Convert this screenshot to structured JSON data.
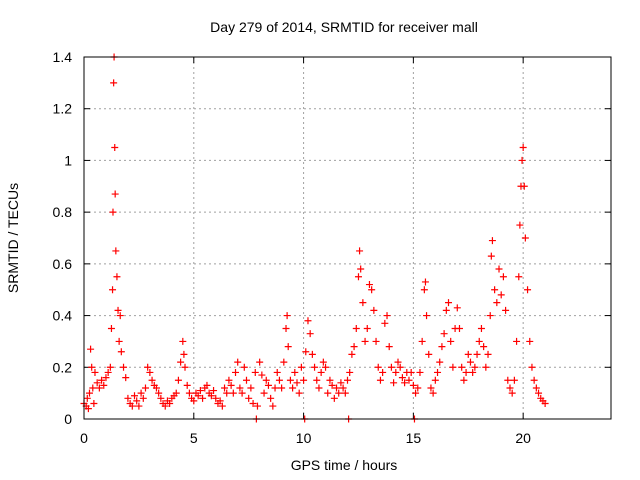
{
  "chart_data": {
    "type": "scatter",
    "title": "Day 279 of 2014, SRMTID for receiver mall",
    "xlabel": "GPS time / hours",
    "ylabel": "SRMTID / TECUs",
    "xlim": [
      0,
      24
    ],
    "ylim": [
      0,
      1.4
    ],
    "xticks": [
      0,
      5,
      10,
      15,
      20
    ],
    "yticks": [
      0,
      0.2,
      0.4,
      0.6,
      0.8,
      1,
      1.2,
      1.4
    ],
    "xtick_labels": [
      "0",
      "5",
      "10",
      "15",
      "20"
    ],
    "ytick_labels": [
      "0",
      "0.2",
      "0.4",
      "0.6",
      "0.8",
      "1",
      "1.2",
      "1.4"
    ],
    "grid": true,
    "marker": "+",
    "color": "#ff0000",
    "series": [
      {
        "name": "SRMTID",
        "points": [
          [
            0.0,
            0.06
          ],
          [
            0.1,
            0.05
          ],
          [
            0.15,
            0.08
          ],
          [
            0.2,
            0.04
          ],
          [
            0.25,
            0.1
          ],
          [
            0.3,
            0.27
          ],
          [
            0.35,
            0.2
          ],
          [
            0.4,
            0.12
          ],
          [
            0.45,
            0.06
          ],
          [
            0.5,
            0.18
          ],
          [
            0.6,
            0.14
          ],
          [
            0.7,
            0.12
          ],
          [
            0.8,
            0.15
          ],
          [
            0.9,
            0.13
          ],
          [
            1.0,
            0.16
          ],
          [
            1.1,
            0.18
          ],
          [
            1.2,
            0.2
          ],
          [
            1.25,
            0.35
          ],
          [
            1.3,
            0.5
          ],
          [
            1.32,
            0.8
          ],
          [
            1.35,
            1.3
          ],
          [
            1.37,
            1.4
          ],
          [
            1.4,
            1.05
          ],
          [
            1.42,
            0.87
          ],
          [
            1.45,
            0.65
          ],
          [
            1.5,
            0.55
          ],
          [
            1.55,
            0.42
          ],
          [
            1.6,
            0.3
          ],
          [
            1.65,
            0.4
          ],
          [
            1.7,
            0.26
          ],
          [
            1.8,
            0.2
          ],
          [
            1.9,
            0.16
          ],
          [
            2.0,
            0.08
          ],
          [
            2.1,
            0.06
          ],
          [
            2.2,
            0.05
          ],
          [
            2.3,
            0.09
          ],
          [
            2.4,
            0.07
          ],
          [
            2.5,
            0.05
          ],
          [
            2.6,
            0.1
          ],
          [
            2.7,
            0.08
          ],
          [
            2.8,
            0.12
          ],
          [
            2.9,
            0.2
          ],
          [
            3.0,
            0.18
          ],
          [
            3.1,
            0.15
          ],
          [
            3.2,
            0.13
          ],
          [
            3.3,
            0.12
          ],
          [
            3.4,
            0.1
          ],
          [
            3.5,
            0.08
          ],
          [
            3.6,
            0.06
          ],
          [
            3.7,
            0.05
          ],
          [
            3.8,
            0.07
          ],
          [
            3.9,
            0.06
          ],
          [
            4.0,
            0.08
          ],
          [
            4.1,
            0.09
          ],
          [
            4.2,
            0.1
          ],
          [
            4.3,
            0.15
          ],
          [
            4.4,
            0.22
          ],
          [
            4.5,
            0.3
          ],
          [
            4.55,
            0.25
          ],
          [
            4.6,
            0.2
          ],
          [
            4.7,
            0.13
          ],
          [
            4.8,
            0.1
          ],
          [
            4.9,
            0.08
          ],
          [
            5.0,
            0.07
          ],
          [
            5.1,
            0.1
          ],
          [
            5.2,
            0.09
          ],
          [
            5.3,
            0.11
          ],
          [
            5.4,
            0.08
          ],
          [
            5.5,
            0.12
          ],
          [
            5.6,
            0.13
          ],
          [
            5.7,
            0.1
          ],
          [
            5.8,
            0.09
          ],
          [
            5.9,
            0.11
          ],
          [
            6.0,
            0.08
          ],
          [
            6.1,
            0.06
          ],
          [
            6.2,
            0.07
          ],
          [
            6.3,
            0.05
          ],
          [
            6.4,
            0.12
          ],
          [
            6.5,
            0.1
          ],
          [
            6.6,
            0.15
          ],
          [
            6.7,
            0.13
          ],
          [
            6.8,
            0.1
          ],
          [
            6.9,
            0.18
          ],
          [
            7.0,
            0.22
          ],
          [
            7.1,
            0.12
          ],
          [
            7.2,
            0.1
          ],
          [
            7.3,
            0.2
          ],
          [
            7.4,
            0.15
          ],
          [
            7.5,
            0.08
          ],
          [
            7.6,
            0.12
          ],
          [
            7.7,
            0.06
          ],
          [
            7.8,
            0.18
          ],
          [
            7.85,
            0.0
          ],
          [
            7.9,
            0.05
          ],
          [
            8.0,
            0.22
          ],
          [
            8.1,
            0.17
          ],
          [
            8.2,
            0.1
          ],
          [
            8.3,
            0.15
          ],
          [
            8.4,
            0.13
          ],
          [
            8.5,
            0.08
          ],
          [
            8.6,
            0.05
          ],
          [
            8.7,
            0.12
          ],
          [
            8.8,
            0.18
          ],
          [
            8.9,
            0.15
          ],
          [
            9.0,
            0.12
          ],
          [
            9.1,
            0.22
          ],
          [
            9.2,
            0.35
          ],
          [
            9.25,
            0.4
          ],
          [
            9.3,
            0.28
          ],
          [
            9.4,
            0.15
          ],
          [
            9.5,
            0.12
          ],
          [
            9.6,
            0.18
          ],
          [
            9.7,
            0.14
          ],
          [
            9.8,
            0.1
          ],
          [
            9.9,
            0.2
          ],
          [
            10.0,
            0.15
          ],
          [
            10.05,
            0.0
          ],
          [
            10.1,
            0.26
          ],
          [
            10.2,
            0.38
          ],
          [
            10.3,
            0.33
          ],
          [
            10.4,
            0.25
          ],
          [
            10.5,
            0.2
          ],
          [
            10.6,
            0.15
          ],
          [
            10.7,
            0.12
          ],
          [
            10.8,
            0.18
          ],
          [
            10.9,
            0.22
          ],
          [
            11.0,
            0.2
          ],
          [
            11.1,
            0.1
          ],
          [
            11.2,
            0.15
          ],
          [
            11.3,
            0.13
          ],
          [
            11.4,
            0.08
          ],
          [
            11.5,
            0.12
          ],
          [
            11.6,
            0.1
          ],
          [
            11.7,
            0.14
          ],
          [
            11.8,
            0.12
          ],
          [
            11.9,
            0.1
          ],
          [
            12.0,
            0.15
          ],
          [
            12.05,
            0.0
          ],
          [
            12.1,
            0.18
          ],
          [
            12.2,
            0.25
          ],
          [
            12.3,
            0.28
          ],
          [
            12.4,
            0.35
          ],
          [
            12.5,
            0.55
          ],
          [
            12.55,
            0.65
          ],
          [
            12.6,
            0.58
          ],
          [
            12.7,
            0.45
          ],
          [
            12.8,
            0.3
          ],
          [
            12.9,
            0.35
          ],
          [
            13.0,
            0.52
          ],
          [
            13.1,
            0.5
          ],
          [
            13.2,
            0.42
          ],
          [
            13.3,
            0.3
          ],
          [
            13.4,
            0.2
          ],
          [
            13.5,
            0.15
          ],
          [
            13.6,
            0.18
          ],
          [
            13.7,
            0.37
          ],
          [
            13.8,
            0.4
          ],
          [
            13.9,
            0.28
          ],
          [
            14.0,
            0.2
          ],
          [
            14.1,
            0.14
          ],
          [
            14.2,
            0.18
          ],
          [
            14.3,
            0.22
          ],
          [
            14.4,
            0.2
          ],
          [
            14.5,
            0.16
          ],
          [
            14.6,
            0.14
          ],
          [
            14.7,
            0.18
          ],
          [
            14.8,
            0.15
          ],
          [
            14.9,
            0.18
          ],
          [
            15.0,
            0.13
          ],
          [
            15.05,
            0.0
          ],
          [
            15.1,
            0.1
          ],
          [
            15.2,
            0.12
          ],
          [
            15.3,
            0.18
          ],
          [
            15.4,
            0.3
          ],
          [
            15.5,
            0.5
          ],
          [
            15.55,
            0.53
          ],
          [
            15.6,
            0.4
          ],
          [
            15.7,
            0.25
          ],
          [
            15.8,
            0.12
          ],
          [
            15.9,
            0.1
          ],
          [
            16.0,
            0.15
          ],
          [
            16.1,
            0.18
          ],
          [
            16.2,
            0.22
          ],
          [
            16.3,
            0.28
          ],
          [
            16.4,
            0.33
          ],
          [
            16.5,
            0.42
          ],
          [
            16.6,
            0.45
          ],
          [
            16.7,
            0.3
          ],
          [
            16.8,
            0.2
          ],
          [
            16.9,
            0.35
          ],
          [
            17.0,
            0.43
          ],
          [
            17.1,
            0.35
          ],
          [
            17.2,
            0.2
          ],
          [
            17.3,
            0.15
          ],
          [
            17.4,
            0.18
          ],
          [
            17.5,
            0.25
          ],
          [
            17.6,
            0.22
          ],
          [
            17.7,
            0.18
          ],
          [
            17.8,
            0.2
          ],
          [
            17.9,
            0.25
          ],
          [
            18.0,
            0.3
          ],
          [
            18.1,
            0.35
          ],
          [
            18.2,
            0.28
          ],
          [
            18.3,
            0.2
          ],
          [
            18.4,
            0.25
          ],
          [
            18.5,
            0.4
          ],
          [
            18.55,
            0.63
          ],
          [
            18.6,
            0.69
          ],
          [
            18.7,
            0.5
          ],
          [
            18.8,
            0.45
          ],
          [
            18.9,
            0.58
          ],
          [
            19.0,
            0.48
          ],
          [
            19.1,
            0.55
          ],
          [
            19.2,
            0.42
          ],
          [
            19.3,
            0.15
          ],
          [
            19.4,
            0.12
          ],
          [
            19.5,
            0.1
          ],
          [
            19.6,
            0.15
          ],
          [
            19.7,
            0.3
          ],
          [
            19.8,
            0.55
          ],
          [
            19.85,
            0.75
          ],
          [
            19.9,
            0.9
          ],
          [
            19.95,
            1.0
          ],
          [
            20.0,
            1.05
          ],
          [
            20.05,
            0.9
          ],
          [
            20.1,
            0.7
          ],
          [
            20.2,
            0.5
          ],
          [
            20.3,
            0.3
          ],
          [
            20.4,
            0.2
          ],
          [
            20.5,
            0.15
          ],
          [
            20.6,
            0.12
          ],
          [
            20.7,
            0.1
          ],
          [
            20.8,
            0.08
          ],
          [
            20.9,
            0.07
          ],
          [
            21.0,
            0.06
          ]
        ]
      }
    ]
  }
}
